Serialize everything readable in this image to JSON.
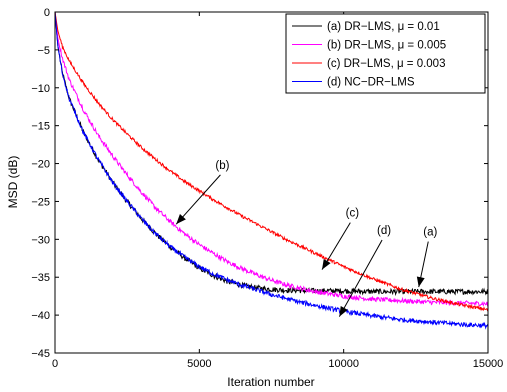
{
  "chart_data": {
    "type": "line",
    "xlabel": "Iteration number",
    "ylabel": "MSD (dB)",
    "xlim": [
      0,
      15000
    ],
    "ylim": [
      -45,
      0
    ],
    "xticks": [
      0,
      5000,
      10000,
      15000
    ],
    "yticks": [
      0,
      -5,
      -10,
      -15,
      -20,
      -25,
      -30,
      -35,
      -40,
      -45
    ],
    "grid": false,
    "legend_position": "top-right",
    "series": [
      {
        "name": "(a) DR−LMS, μ = 0.01",
        "color": "#000000",
        "noise": 0.35,
        "x": [
          0,
          100,
          250,
          500,
          1000,
          1500,
          2000,
          2500,
          3000,
          3500,
          4000,
          4500,
          5000,
          5500,
          6000,
          6500,
          7000,
          7500,
          8000,
          9000,
          10000,
          11000,
          12000,
          13000,
          14000,
          15000
        ],
        "y": [
          0,
          -4.5,
          -8,
          -11.5,
          -16,
          -19.5,
          -22.5,
          -25,
          -27.3,
          -29.3,
          -31,
          -32.5,
          -33.8,
          -34.8,
          -35.6,
          -36.1,
          -36.4,
          -36.6,
          -36.7,
          -36.8,
          -36.8,
          -36.9,
          -36.9,
          -36.9,
          -36.9,
          -36.9
        ]
      },
      {
        "name": "(b) DR−LMS, μ = 0.005",
        "color": "#ff00ff",
        "noise": 0.3,
        "x": [
          0,
          100,
          250,
          500,
          1000,
          1500,
          2000,
          2500,
          3000,
          3500,
          4000,
          4500,
          5000,
          5500,
          6000,
          6500,
          7000,
          7500,
          8000,
          9000,
          10000,
          11000,
          12000,
          13000,
          14000,
          15000
        ],
        "y": [
          0,
          -3.5,
          -6,
          -9,
          -13,
          -16.3,
          -19,
          -21.5,
          -23.8,
          -25.9,
          -27.7,
          -29.3,
          -30.7,
          -31.9,
          -33,
          -33.9,
          -34.7,
          -35.4,
          -36,
          -36.9,
          -37.5,
          -37.9,
          -38.1,
          -38.3,
          -38.4,
          -38.5
        ]
      },
      {
        "name": "(c) DR−LMS, μ = 0.003",
        "color": "#ff0000",
        "noise": 0.2,
        "x": [
          0,
          100,
          250,
          500,
          1000,
          1500,
          2000,
          2500,
          3000,
          3500,
          4000,
          4500,
          5000,
          5500,
          6000,
          6500,
          7000,
          7500,
          8000,
          8500,
          9000,
          9500,
          10000,
          10500,
          11000,
          11500,
          12000,
          13000,
          14000,
          15000
        ],
        "y": [
          0,
          -2.5,
          -4.5,
          -6.5,
          -9.5,
          -12,
          -14.2,
          -16.1,
          -17.9,
          -19.5,
          -21,
          -22.4,
          -23.6,
          -24.8,
          -25.9,
          -27,
          -28,
          -29,
          -30,
          -30.9,
          -31.8,
          -32.7,
          -33.6,
          -34.4,
          -35.2,
          -35.9,
          -36.6,
          -37.7,
          -38.6,
          -39.3
        ]
      },
      {
        "name": "(d) NC−DR−LMS",
        "color": "#0000ff",
        "noise": 0.3,
        "x": [
          0,
          100,
          250,
          500,
          1000,
          1500,
          2000,
          2500,
          3000,
          3500,
          4000,
          4500,
          5000,
          5500,
          6000,
          6500,
          7000,
          7500,
          8000,
          8500,
          9000,
          9500,
          10000,
          11000,
          12000,
          13000,
          14000,
          15000
        ],
        "y": [
          0,
          -4.5,
          -8,
          -11.5,
          -16,
          -19.5,
          -22.5,
          -25,
          -27.3,
          -29.3,
          -31,
          -32.4,
          -33.6,
          -34.6,
          -35.4,
          -36.1,
          -36.7,
          -37.3,
          -37.8,
          -38.3,
          -38.7,
          -39.1,
          -39.5,
          -40.1,
          -40.6,
          -40.9,
          -41.2,
          -41.4
        ]
      }
    ],
    "annotations": [
      {
        "label": "(b)",
        "text_at": [
          5800,
          -20.7
        ],
        "arrow_to": [
          4200,
          -28
        ]
      },
      {
        "label": "(c)",
        "text_at": [
          10300,
          -27
        ],
        "arrow_to": [
          9250,
          -34
        ]
      },
      {
        "label": "(d)",
        "text_at": [
          11400,
          -29.3
        ],
        "arrow_to": [
          9850,
          -40.2
        ]
      },
      {
        "label": "(a)",
        "text_at": [
          13000,
          -29.5
        ],
        "arrow_to": [
          12600,
          -36.3
        ]
      }
    ]
  }
}
